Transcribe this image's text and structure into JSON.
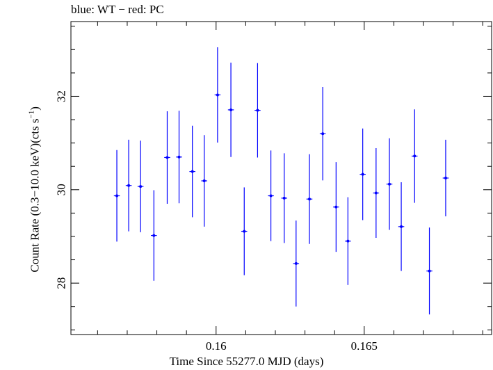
{
  "chart_data": {
    "type": "scatter",
    "title": "blue: WT − red: PC",
    "xlabel": "Time Since 55277.0 MJD (days)",
    "ylabel_main": "Count Rate (0.3−10.0 keV)(cts s",
    "ylabel_sup": "−1",
    "ylabel_end": ")",
    "xlim": [
      0.1551,
      0.1693
    ],
    "ylim": [
      26.9,
      33.6
    ],
    "xticks_major": [
      0.16,
      0.165
    ],
    "xtick_labels": [
      "0.16",
      "0.165"
    ],
    "yticks_major": [
      28,
      30,
      32
    ],
    "ytick_labels": [
      "28",
      "30",
      "32"
    ],
    "grid": false,
    "colors": {
      "WT": "#0000ff",
      "axes": "#000000"
    },
    "series": [
      {
        "name": "WT",
        "color": "#0000ff",
        "points": [
          {
            "x": 0.15665,
            "xerr": 0.0001,
            "y": 29.87,
            "yerr": 0.98
          },
          {
            "x": 0.15705,
            "xerr": 0.0001,
            "y": 30.09,
            "yerr": 0.98
          },
          {
            "x": 0.15745,
            "xerr": 0.0001,
            "y": 30.07,
            "yerr": 0.98
          },
          {
            "x": 0.1579,
            "xerr": 0.0001,
            "y": 29.02,
            "yerr": 0.97
          },
          {
            "x": 0.15835,
            "xerr": 0.0001,
            "y": 30.69,
            "yerr": 0.99
          },
          {
            "x": 0.15875,
            "xerr": 0.0001,
            "y": 30.7,
            "yerr": 0.99
          },
          {
            "x": 0.1592,
            "xerr": 0.0001,
            "y": 30.39,
            "yerr": 0.98
          },
          {
            "x": 0.1596,
            "xerr": 0.0001,
            "y": 30.19,
            "yerr": 0.98
          },
          {
            "x": 0.16005,
            "xerr": 0.0001,
            "y": 32.03,
            "yerr": 1.02
          },
          {
            "x": 0.1605,
            "xerr": 0.0001,
            "y": 31.71,
            "yerr": 1.01
          },
          {
            "x": 0.16095,
            "xerr": 0.0001,
            "y": 29.11,
            "yerr": 0.94
          },
          {
            "x": 0.1614,
            "xerr": 0.0001,
            "y": 31.7,
            "yerr": 1.01
          },
          {
            "x": 0.16185,
            "xerr": 0.0001,
            "y": 29.87,
            "yerr": 0.97
          },
          {
            "x": 0.1623,
            "xerr": 0.0001,
            "y": 29.82,
            "yerr": 0.96
          },
          {
            "x": 0.1627,
            "xerr": 0.0001,
            "y": 28.42,
            "yerr": 0.92
          },
          {
            "x": 0.16315,
            "xerr": 0.0001,
            "y": 29.8,
            "yerr": 0.96
          },
          {
            "x": 0.1636,
            "xerr": 0.0001,
            "y": 31.2,
            "yerr": 1.0
          },
          {
            "x": 0.16405,
            "xerr": 0.0001,
            "y": 29.63,
            "yerr": 0.96
          },
          {
            "x": 0.16445,
            "xerr": 0.0001,
            "y": 28.9,
            "yerr": 0.94
          },
          {
            "x": 0.16495,
            "xerr": 0.0001,
            "y": 30.33,
            "yerr": 0.98
          },
          {
            "x": 0.1654,
            "xerr": 0.0001,
            "y": 29.93,
            "yerr": 0.96
          },
          {
            "x": 0.16585,
            "xerr": 0.0001,
            "y": 30.12,
            "yerr": 0.98
          },
          {
            "x": 0.16625,
            "xerr": 0.0001,
            "y": 29.21,
            "yerr": 0.95
          },
          {
            "x": 0.1667,
            "xerr": 0.0001,
            "y": 30.72,
            "yerr": 1.0
          },
          {
            "x": 0.1672,
            "xerr": 0.0001,
            "y": 28.26,
            "yerr": 0.93
          },
          {
            "x": 0.16775,
            "xerr": 0.0001,
            "y": 30.25,
            "yerr": 0.82
          }
        ]
      }
    ]
  }
}
